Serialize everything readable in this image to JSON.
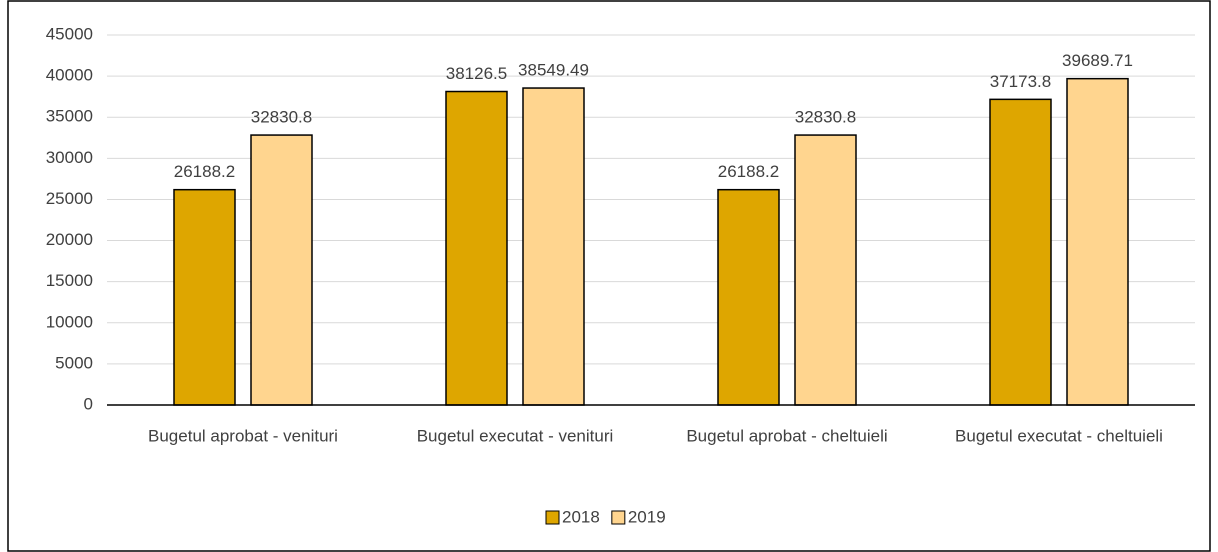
{
  "chart_data": {
    "type": "bar",
    "categories": [
      "Bugetul aprobat - venituri",
      "Bugetul executat - venituri",
      "Bugetul aprobat - cheltuieli",
      "Bugetul executat - cheltuieli"
    ],
    "series": [
      {
        "name": "2018",
        "color": "#DEA600",
        "values": [
          26188.2,
          38126.5,
          26188.2,
          37173.8
        ]
      },
      {
        "name": "2019",
        "color": "#FFD58F",
        "values": [
          32830.8,
          38549.49,
          32830.8,
          39689.71
        ]
      }
    ],
    "ylim": [
      0,
      45000
    ],
    "yticks": [
      0,
      5000,
      10000,
      15000,
      20000,
      25000,
      30000,
      35000,
      40000,
      45000
    ],
    "grid": true,
    "legend": "bottom"
  }
}
